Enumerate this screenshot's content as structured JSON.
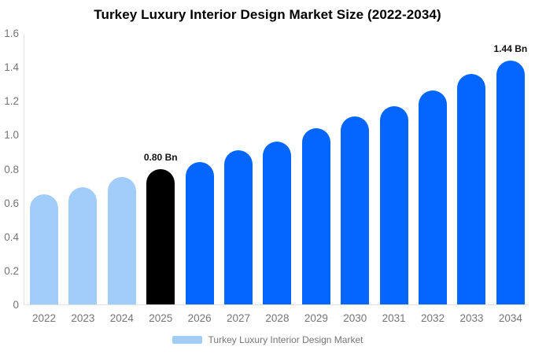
{
  "title": "Turkey Luxury Interior Design Market Size (2022-2034)",
  "legend": {
    "label": "Turkey Luxury Interior Design Market",
    "swatch_color": "#a2ccfa"
  },
  "chart_data": {
    "type": "bar",
    "title": "Turkey Luxury Interior Design Market Size (2022-2034)",
    "xlabel": "",
    "ylabel": "",
    "categories": [
      "2022",
      "2023",
      "2024",
      "2025",
      "2026",
      "2027",
      "2028",
      "2029",
      "2030",
      "2031",
      "2032",
      "2033",
      "2034"
    ],
    "values": [
      0.65,
      0.69,
      0.75,
      0.8,
      0.84,
      0.91,
      0.96,
      1.04,
      1.11,
      1.17,
      1.26,
      1.36,
      1.44
    ],
    "unit": "Bn",
    "point_labels": [
      "",
      "",
      "",
      "0.80 Bn",
      "",
      "",
      "",
      "",
      "",
      "",
      "",
      "",
      "1.44 Bn"
    ],
    "bar_colors": [
      "#a2ccfa",
      "#a2ccfa",
      "#a2ccfa",
      "#000000",
      "#0566fd",
      "#0566fd",
      "#0566fd",
      "#0566fd",
      "#0566fd",
      "#0566fd",
      "#0566fd",
      "#0566fd",
      "#0566fd"
    ],
    "ylim": [
      0,
      1.6
    ],
    "yticks": [
      "0",
      "0.2",
      "0.4",
      "0.6",
      "0.8",
      "1.0",
      "1.2",
      "1.4",
      "1.6"
    ],
    "grid": false,
    "legend_position": "bottom",
    "colors": {
      "historical_bar": "#a2ccfa",
      "base_year_bar": "#000000",
      "forecast_bar": "#0566fd",
      "axis_text": "#757575",
      "axis_line": "#e3e3e3",
      "title_text": "#000000",
      "background": "#ffffff"
    }
  }
}
